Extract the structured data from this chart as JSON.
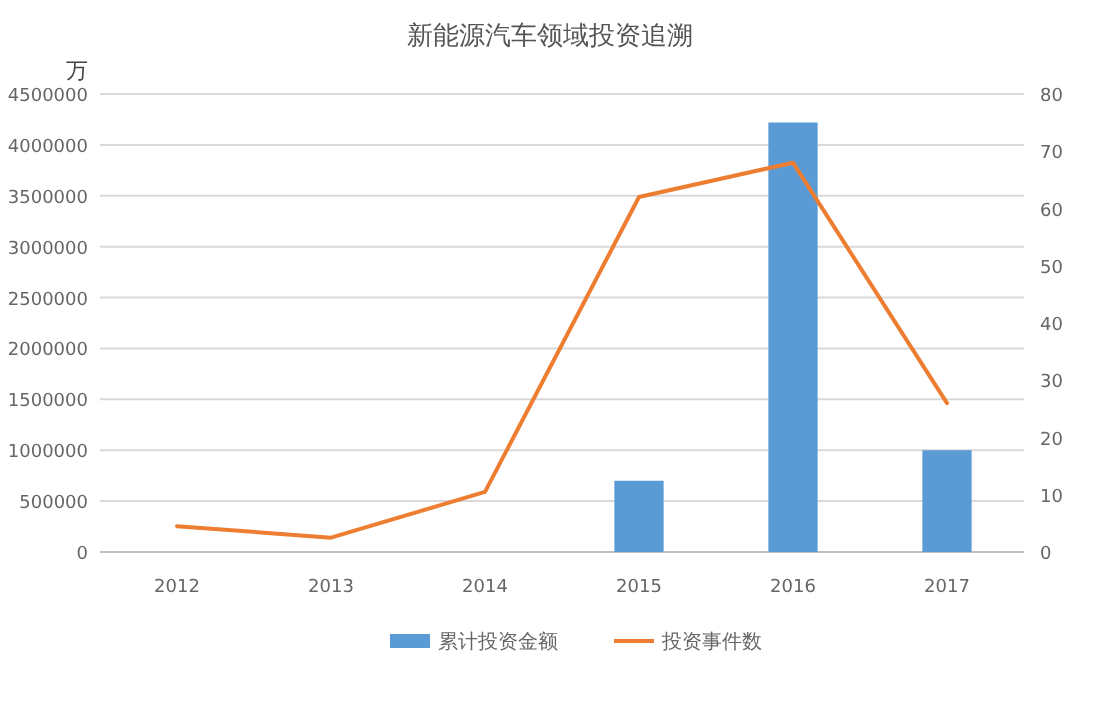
{
  "chart_data": {
    "type": "bar",
    "title": "新能源汽车领域投资追溯",
    "ylabel": "万",
    "categories": [
      "2012",
      "2013",
      "2014",
      "2015",
      "2016",
      "2017"
    ],
    "series": [
      {
        "name": "累计投资金额",
        "color": "#5b9bd5",
        "values": [
          null,
          null,
          null,
          700000,
          4220000,
          1000000
        ]
      },
      {
        "name": "投资事件数",
        "type": "line",
        "axis": "y2",
        "color": "#ed7d31",
        "values": [
          4.5,
          2.5,
          10.5,
          62,
          68,
          26
        ]
      }
    ],
    "ylim": [
      0,
      4500000
    ],
    "yticks": [
      0,
      500000,
      1000000,
      1500000,
      2000000,
      2500000,
      3000000,
      3500000,
      4000000,
      4500000
    ],
    "y2lim": [
      0,
      80
    ],
    "y2ticks": [
      0,
      10,
      20,
      30,
      40,
      50,
      60,
      70,
      80
    ],
    "grid": "y",
    "legend": "bottom"
  }
}
